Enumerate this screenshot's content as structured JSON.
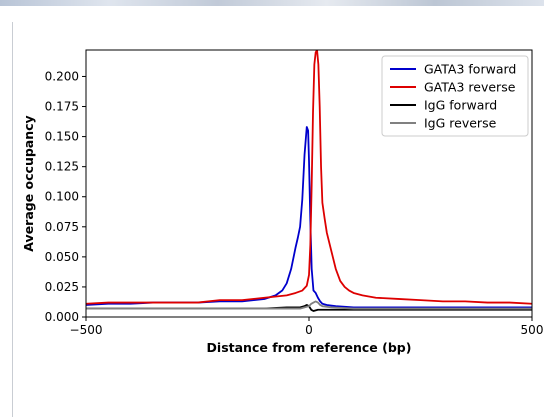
{
  "chart_data": {
    "type": "line",
    "title": "",
    "xlabel": "Distance from reference (bp)",
    "ylabel": "Average occupancy",
    "xlim": [
      -500,
      500
    ],
    "ylim": [
      0.0,
      0.222
    ],
    "xticks": [
      -500,
      0,
      500
    ],
    "xtick_labels": [
      "−500",
      "0",
      "500"
    ],
    "yticks": [
      0.0,
      0.025,
      0.05,
      0.075,
      0.1,
      0.125,
      0.15,
      0.175,
      0.2
    ],
    "ytick_labels": [
      "0.000",
      "0.025",
      "0.050",
      "0.075",
      "0.100",
      "0.125",
      "0.150",
      "0.175",
      "0.200"
    ],
    "grid": false,
    "legend_position": "top-right",
    "series": [
      {
        "name": "GATA3 forward",
        "color": "#0000cc",
        "x": [
          -500,
          -450,
          -400,
          -350,
          -300,
          -250,
          -200,
          -150,
          -100,
          -75,
          -60,
          -50,
          -40,
          -30,
          -25,
          -20,
          -15,
          -10,
          -5,
          -2,
          0,
          3,
          6,
          10,
          15,
          20,
          25,
          30,
          40,
          60,
          100,
          150,
          200,
          250,
          300,
          350,
          400,
          450,
          500
        ],
        "y": [
          0.01,
          0.011,
          0.011,
          0.012,
          0.012,
          0.012,
          0.013,
          0.013,
          0.015,
          0.018,
          0.022,
          0.028,
          0.04,
          0.058,
          0.066,
          0.075,
          0.098,
          0.135,
          0.158,
          0.155,
          0.13,
          0.08,
          0.04,
          0.022,
          0.02,
          0.016,
          0.013,
          0.011,
          0.01,
          0.009,
          0.008,
          0.008,
          0.008,
          0.008,
          0.008,
          0.008,
          0.008,
          0.008,
          0.008
        ]
      },
      {
        "name": "GATA3 reverse",
        "color": "#dd0000",
        "x": [
          -500,
          -450,
          -400,
          -350,
          -300,
          -250,
          -200,
          -150,
          -100,
          -50,
          -30,
          -15,
          -5,
          0,
          3,
          6,
          9,
          12,
          15,
          18,
          21,
          24,
          27,
          30,
          35,
          40,
          50,
          60,
          70,
          80,
          90,
          100,
          120,
          150,
          200,
          250,
          300,
          350,
          400,
          450,
          500
        ],
        "y": [
          0.011,
          0.012,
          0.012,
          0.012,
          0.012,
          0.012,
          0.014,
          0.014,
          0.016,
          0.018,
          0.02,
          0.022,
          0.026,
          0.035,
          0.06,
          0.11,
          0.17,
          0.21,
          0.22,
          0.222,
          0.21,
          0.175,
          0.125,
          0.095,
          0.082,
          0.07,
          0.055,
          0.04,
          0.03,
          0.025,
          0.022,
          0.02,
          0.018,
          0.016,
          0.015,
          0.014,
          0.013,
          0.013,
          0.012,
          0.012,
          0.011
        ]
      },
      {
        "name": "IgG forward",
        "color": "#000000",
        "x": [
          -500,
          -300,
          -100,
          -50,
          -20,
          -10,
          -5,
          0,
          5,
          10,
          20,
          50,
          100,
          300,
          500
        ],
        "y": [
          0.007,
          0.007,
          0.007,
          0.008,
          0.008,
          0.009,
          0.01,
          0.009,
          0.006,
          0.005,
          0.006,
          0.006,
          0.006,
          0.006,
          0.006
        ]
      },
      {
        "name": "IgG reverse",
        "color": "#808080",
        "x": [
          -500,
          -300,
          -100,
          -50,
          -20,
          -10,
          0,
          5,
          10,
          15,
          20,
          25,
          30,
          50,
          100,
          300,
          500
        ],
        "y": [
          0.007,
          0.007,
          0.007,
          0.007,
          0.007,
          0.008,
          0.009,
          0.011,
          0.012,
          0.013,
          0.012,
          0.01,
          0.009,
          0.008,
          0.007,
          0.007,
          0.007
        ]
      }
    ]
  }
}
